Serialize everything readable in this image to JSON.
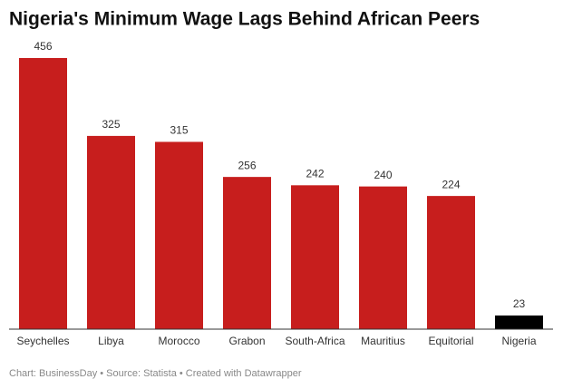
{
  "chart_data": {
    "type": "bar",
    "title": "Nigeria's Minimum Wage Lags Behind African Peers",
    "categories": [
      "Seychelles",
      "Libya",
      "Morocco",
      "Grabon",
      "South-Africa",
      "Mauritius",
      "Equitorial",
      "Nigeria"
    ],
    "values": [
      456,
      325,
      315,
      256,
      242,
      240,
      224,
      23
    ],
    "colors": [
      "#c71e1d",
      "#c71e1d",
      "#c71e1d",
      "#c71e1d",
      "#c71e1d",
      "#c71e1d",
      "#c71e1d",
      "#000000"
    ],
    "ylim": [
      0,
      456
    ],
    "footer": "Chart: BusinessDay • Source: Statista • Created with Datawrapper"
  }
}
